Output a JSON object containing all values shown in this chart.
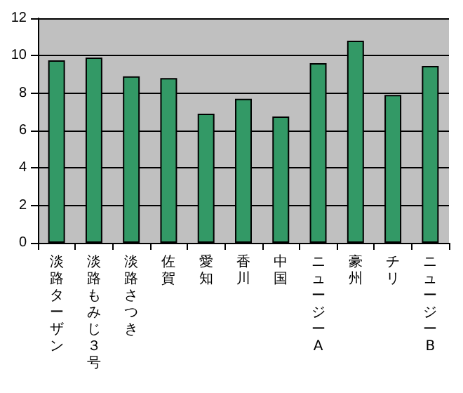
{
  "chart_data": {
    "type": "bar",
    "categories": [
      "淡路ターザン",
      "淡路もみじ３号",
      "淡路さつき",
      "佐賀",
      "愛知",
      "香川",
      "中国",
      "ニュージーA",
      "豪州",
      "チリ",
      "ニュージーB"
    ],
    "values": [
      9.75,
      9.9,
      8.9,
      8.8,
      6.9,
      7.7,
      6.75,
      9.6,
      10.8,
      7.9,
      9.45
    ],
    "color": "#339966",
    "ylim": [
      0,
      12
    ],
    "yticks": [
      0,
      2,
      4,
      6,
      8,
      10,
      12
    ],
    "grid": "y"
  }
}
